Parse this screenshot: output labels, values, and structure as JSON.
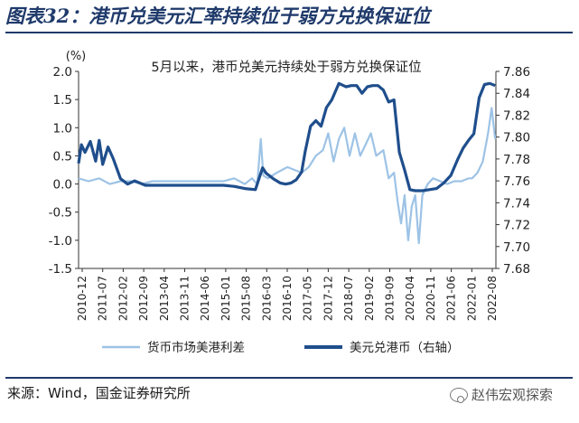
{
  "figure": {
    "title": "图表32：港币兑美元汇率持续位于弱方兑换保证位",
    "source": "来源：Wind，国金证券研究所",
    "watermark": "赵伟宏观探索",
    "watermark_icon": "wechat-icon"
  },
  "chart_data": {
    "type": "line",
    "title": "5月以来，港币兑美元持续处于弱方兑换保证位",
    "left_unit": "(%)",
    "ylim_left": [
      -1.5,
      2.0
    ],
    "ylim_right": [
      7.68,
      7.86
    ],
    "yticks_left": [
      "2.0",
      "1.5",
      "1.0",
      "0.5",
      "0.0",
      "-0.5",
      "-1.0",
      "-1.5"
    ],
    "yticks_right": [
      "7.86",
      "7.84",
      "7.82",
      "7.80",
      "7.78",
      "7.76",
      "7.74",
      "7.72",
      "7.70",
      "7.68"
    ],
    "x_ticks": [
      "2010-12",
      "2011-07",
      "2012-02",
      "2012-09",
      "2013-04",
      "2013-11",
      "2014-06",
      "2015-01",
      "2015-08",
      "2016-03",
      "2016-10",
      "2017-05",
      "2017-12",
      "2018-07",
      "2019-02",
      "2019-09",
      "2020-04",
      "2020-11",
      "2021-06",
      "2022-01",
      "2022-08"
    ],
    "colors": {
      "spread": "#9dc3e6",
      "rate": "#1f4e8c",
      "axis": "#333333"
    },
    "series": [
      {
        "name": "货币市场美港利差",
        "axis": "left",
        "x": [
          2010.92,
          2011.2,
          2011.5,
          2011.8,
          2012.1,
          2012.4,
          2012.7,
          2013.0,
          2013.4,
          2013.8,
          2014.2,
          2014.6,
          2015.0,
          2015.3,
          2015.6,
          2015.8,
          2015.95,
          2016.05,
          2016.12,
          2016.25,
          2016.5,
          2016.8,
          2017.0,
          2017.2,
          2017.4,
          2017.6,
          2017.8,
          2017.95,
          2018.1,
          2018.25,
          2018.4,
          2018.55,
          2018.7,
          2018.85,
          2019.0,
          2019.15,
          2019.3,
          2019.5,
          2019.65,
          2019.8,
          2019.9,
          2020.0,
          2020.1,
          2020.2,
          2020.3,
          2020.4,
          2020.5,
          2020.6,
          2020.75,
          2020.9,
          2021.1,
          2021.3,
          2021.5,
          2021.7,
          2021.9,
          2022.0,
          2022.15,
          2022.3,
          2022.45,
          2022.55,
          2022.65
        ],
        "values": [
          0.1,
          0.05,
          0.1,
          0.0,
          0.05,
          0.05,
          0.0,
          0.05,
          0.05,
          0.05,
          0.05,
          0.05,
          0.05,
          0.1,
          0.0,
          0.1,
          0.0,
          0.8,
          0.15,
          0.1,
          0.2,
          0.3,
          0.25,
          0.2,
          0.3,
          0.5,
          0.6,
          0.9,
          0.4,
          0.8,
          1.0,
          0.5,
          0.9,
          0.5,
          0.7,
          0.9,
          0.5,
          0.6,
          0.1,
          0.2,
          -0.3,
          -0.7,
          -0.2,
          -1.0,
          -0.4,
          -0.2,
          -1.05,
          -0.2,
          0.0,
          0.1,
          0.05,
          0.0,
          0.05,
          0.05,
          0.1,
          0.1,
          0.2,
          0.4,
          0.9,
          1.35,
          0.8
        ]
      },
      {
        "name": "美元兑港币（右轴）",
        "axis": "right",
        "x": [
          2010.92,
          2011.0,
          2011.1,
          2011.25,
          2011.4,
          2011.5,
          2011.6,
          2011.75,
          2011.9,
          2012.1,
          2012.3,
          2012.5,
          2012.8,
          2013.1,
          2013.5,
          2013.9,
          2014.3,
          2014.7,
          2015.0,
          2015.3,
          2015.6,
          2015.9,
          2016.0,
          2016.1,
          2016.2,
          2016.4,
          2016.6,
          2016.75,
          2016.9,
          2017.05,
          2017.2,
          2017.3,
          2017.45,
          2017.6,
          2017.75,
          2017.9,
          2018.05,
          2018.25,
          2018.45,
          2018.6,
          2018.75,
          2018.9,
          2019.05,
          2019.2,
          2019.35,
          2019.5,
          2019.65,
          2019.8,
          2019.95,
          2020.1,
          2020.25,
          2020.4,
          2020.6,
          2020.8,
          2021.0,
          2021.2,
          2021.4,
          2021.6,
          2021.75,
          2021.9,
          2022.05,
          2022.2,
          2022.35,
          2022.5,
          2022.65
        ],
        "values": [
          7.776,
          7.793,
          7.786,
          7.796,
          7.778,
          7.797,
          7.775,
          7.791,
          7.78,
          7.762,
          7.757,
          7.76,
          7.756,
          7.756,
          7.756,
          7.756,
          7.756,
          7.756,
          7.756,
          7.755,
          7.753,
          7.752,
          7.762,
          7.772,
          7.767,
          7.762,
          7.758,
          7.757,
          7.758,
          7.761,
          7.768,
          7.787,
          7.81,
          7.815,
          7.81,
          7.827,
          7.834,
          7.849,
          7.846,
          7.847,
          7.847,
          7.84,
          7.846,
          7.847,
          7.847,
          7.843,
          7.832,
          7.834,
          7.786,
          7.77,
          7.752,
          7.751,
          7.751,
          7.752,
          7.753,
          7.758,
          7.765,
          7.78,
          7.79,
          7.797,
          7.803,
          7.836,
          7.848,
          7.849,
          7.847
        ]
      }
    ],
    "legend_position": "bottom"
  }
}
